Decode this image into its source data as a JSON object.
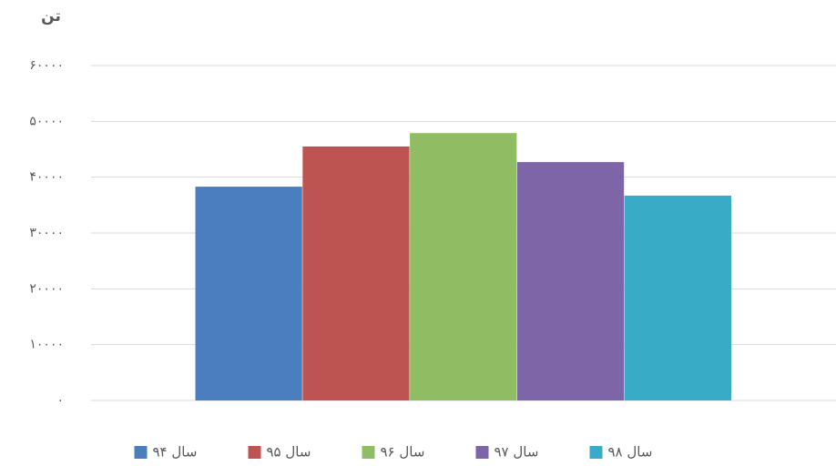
{
  "chart_data": {
    "type": "bar",
    "y_label": "تن",
    "categories": [
      null
    ],
    "series": [
      {
        "name": "سال ۹۴",
        "color": "#4a7ebf",
        "values": [
          38300
        ]
      },
      {
        "name": "سال ۹۵",
        "color": "#be5451",
        "values": [
          45500
        ]
      },
      {
        "name": "سال ۹۶",
        "color": "#90bd63",
        "values": [
          47900
        ]
      },
      {
        "name": "سال ۹۷",
        "color": "#7d65a8",
        "values": [
          42700
        ]
      },
      {
        "name": "سال ۹۸",
        "color": "#38abc6",
        "values": [
          36700
        ]
      }
    ],
    "ylim": [
      0,
      60000
    ],
    "yticks": [
      {
        "value": 0,
        "label": "۰"
      },
      {
        "value": 10000,
        "label": "۱۰۰۰۰"
      },
      {
        "value": 20000,
        "label": "۲۰۰۰۰"
      },
      {
        "value": 30000,
        "label": "۳۰۰۰۰"
      },
      {
        "value": 40000,
        "label": "۴۰۰۰۰"
      },
      {
        "value": 50000,
        "label": "۵۰۰۰۰"
      },
      {
        "value": 60000,
        "label": "۶۰۰۰۰"
      }
    ],
    "grid": true,
    "legend": "bottom"
  }
}
